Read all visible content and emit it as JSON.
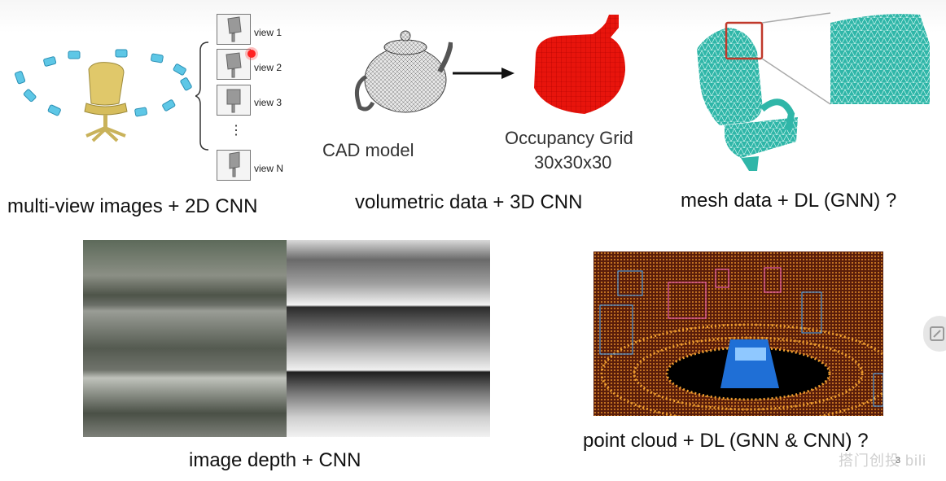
{
  "captions": {
    "multiview": "multi-view images + 2D CNN",
    "volumetric": "volumetric data + 3D CNN",
    "mesh": "mesh data + DL (GNN) ?",
    "depth": "image depth + CNN",
    "pointcloud": "point cloud + DL (GNN & CNN) ?"
  },
  "views": {
    "items": [
      "view 1",
      "view 2",
      "view 3",
      "view N"
    ],
    "ellipsis": "⋮"
  },
  "volumetric": {
    "cad_label": "CAD model",
    "grid_label_line1": "Occupancy Grid",
    "grid_label_line2": "30x30x30"
  },
  "overlay": {
    "watermark": "搭门创投 bili",
    "page_number": "3"
  },
  "colors": {
    "voxel_red": "#e8140c",
    "mesh_teal": "#2fb6a8",
    "camera_blue": "#5ec7e6",
    "cursor_red": "#ff2222"
  }
}
